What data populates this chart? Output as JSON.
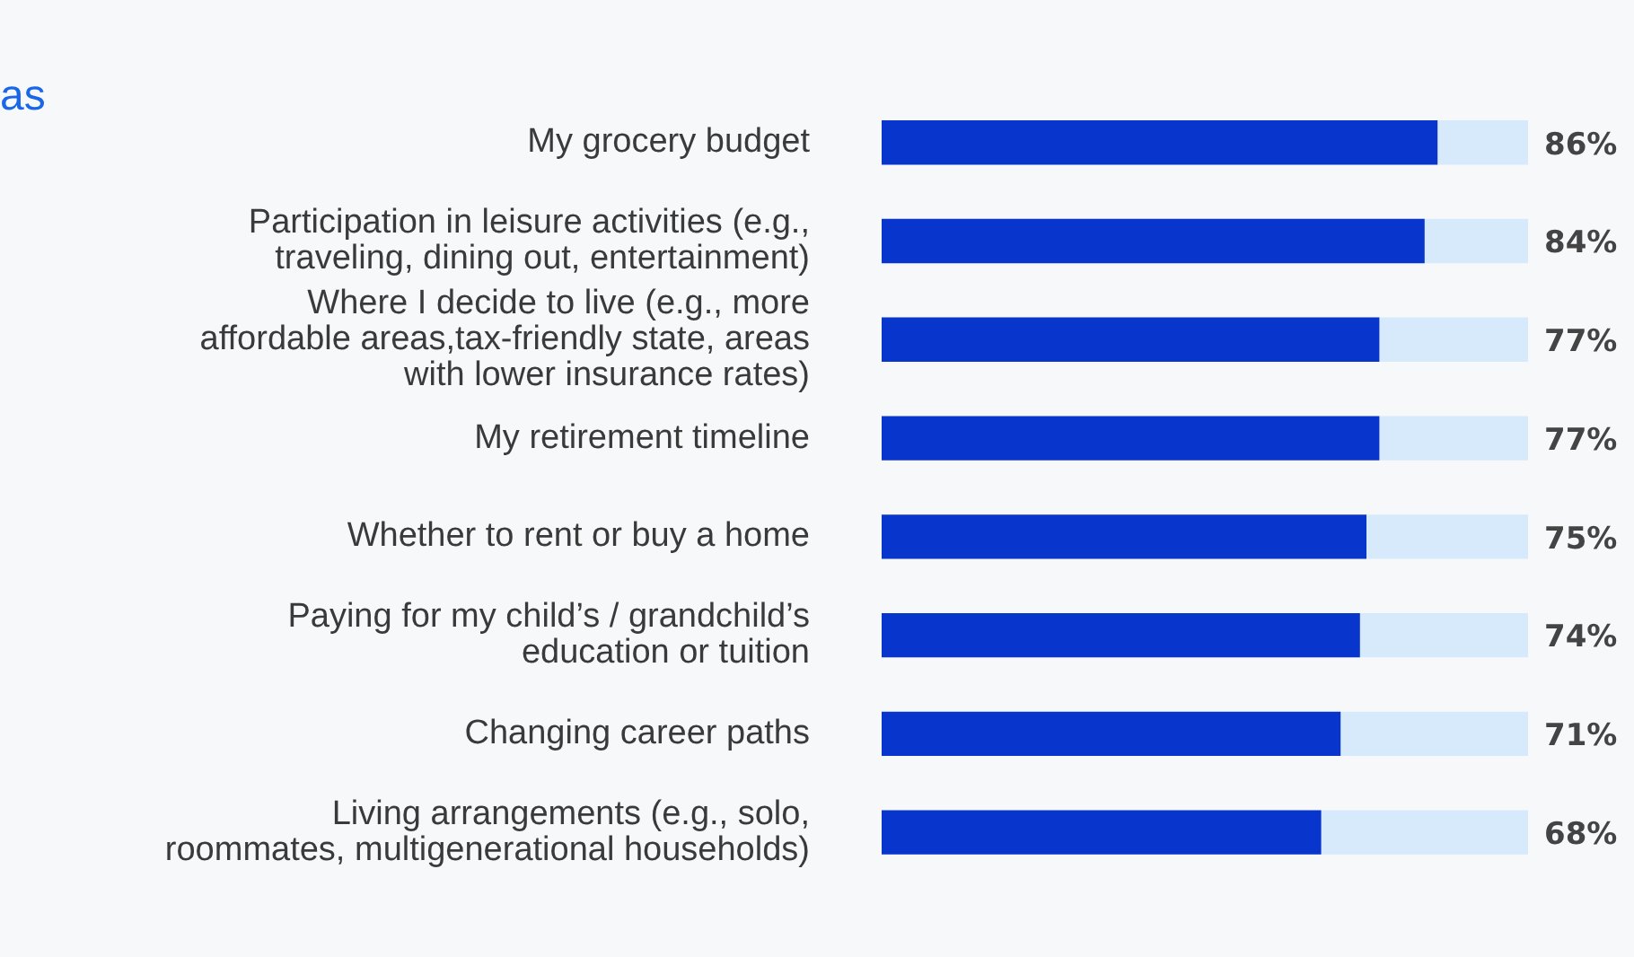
{
  "chart_data": {
    "type": "bar",
    "orientation": "horizontal",
    "stacked": true,
    "title": "as",
    "categories": [
      "My grocery budget",
      "Participation in leisure activities (e.g., traveling, dining out, entertainment)",
      "Where I decide to live (e.g., more affordable areas,tax-friendly state, areas with lower insurance rates)",
      "My retirement timeline",
      "Whether to rent or buy a home",
      "Paying for my child’s / grandchild’s education or tuition",
      "Changing career paths",
      "Living arrangements (e.g., solo, roommates, multigenerational households)"
    ],
    "series": [
      {
        "color": "#0836cc",
        "values": [
          86,
          84,
          77,
          77,
          75,
          74,
          71,
          68
        ],
        "value_labels": [
          "86%",
          "84%",
          "77%",
          "77%",
          "75%",
          "74%",
          "71%",
          "68%"
        ]
      },
      {
        "color": "#d6eafc",
        "values": [
          14,
          16,
          23,
          23,
          25,
          26,
          29,
          32
        ]
      }
    ],
    "xlim": [
      0,
      100
    ],
    "tick_labels": "y"
  }
}
